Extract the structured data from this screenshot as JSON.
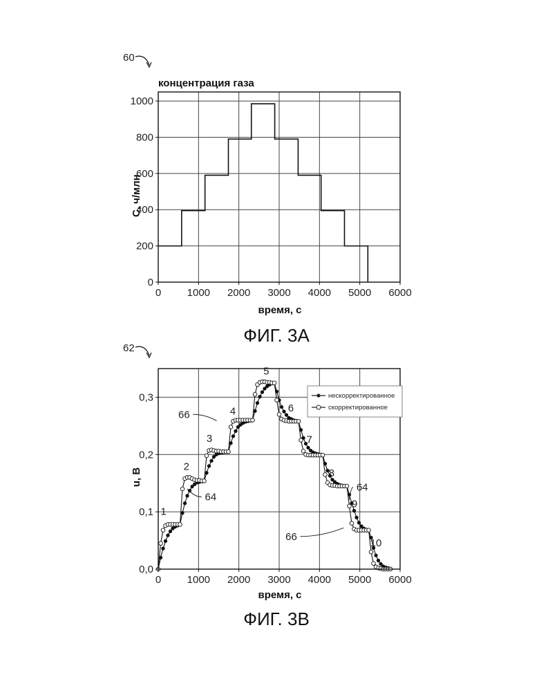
{
  "figure_a": {
    "ref_number": "60",
    "caption": "ФИГ. 3А"
  },
  "figure_b": {
    "ref_number": "62",
    "caption": "ФИГ. 3В",
    "annotations": [
      {
        "text": "1",
        "x": 130,
        "y": 0.095
      },
      {
        "text": "2",
        "x": 700,
        "y": 0.173
      },
      {
        "text": "3",
        "x": 1270,
        "y": 0.222
      },
      {
        "text": "4",
        "x": 1850,
        "y": 0.27
      },
      {
        "text": "5",
        "x": 2680,
        "y": 0.34
      },
      {
        "text": "6",
        "x": 3290,
        "y": 0.275
      },
      {
        "text": "7",
        "x": 3750,
        "y": 0.22
      },
      {
        "text": "8",
        "x": 4300,
        "y": 0.162
      },
      {
        "text": "9",
        "x": 4870,
        "y": 0.108
      },
      {
        "text": "10",
        "x": 5400,
        "y": 0.04
      }
    ],
    "callouts": [
      {
        "text": "66",
        "label_x": 640,
        "label_y": 0.27,
        "target_x": 1450,
        "target_y": 0.259
      },
      {
        "text": "64",
        "label_x": 1300,
        "label_y": 0.126,
        "target_x": 720,
        "target_y": 0.14
      },
      {
        "text": "64",
        "label_x": 5060,
        "label_y": 0.143,
        "target_x": 4730,
        "target_y": 0.12
      },
      {
        "text": "66",
        "label_x": 3300,
        "label_y": 0.057,
        "target_x": 4600,
        "target_y": 0.072
      }
    ]
  },
  "chart_data": [
    {
      "type": "line",
      "title": "концентрация газа",
      "xlabel": "время, с",
      "ylabel": "C, ч/млн",
      "xlim": [
        0,
        6000
      ],
      "ylim": [
        0,
        1050
      ],
      "xticks": [
        0,
        1000,
        2000,
        3000,
        4000,
        5000,
        6000
      ],
      "xtick_labels": [
        "0",
        "1000",
        "2000",
        "3000",
        "4000",
        "5000",
        "6000"
      ],
      "yticks": [
        0,
        200,
        400,
        600,
        800,
        1000
      ],
      "ytick_labels": [
        "0",
        "200",
        "400",
        "600",
        "800",
        "1000"
      ],
      "grid": true,
      "series": [
        {
          "x": [
            0,
            580,
            580,
            1160,
            1160,
            1740,
            1740,
            2310,
            2310,
            2890,
            2890,
            3470,
            3470,
            4040,
            4040,
            4620,
            4620,
            5200,
            5200
          ],
          "y": [
            200,
            200,
            395,
            395,
            590,
            590,
            790,
            790,
            985,
            985,
            790,
            790,
            590,
            590,
            395,
            395,
            200,
            200,
            0
          ]
        }
      ]
    },
    {
      "type": "line",
      "title": "",
      "xlabel": "время, с",
      "ylabel": "u, B",
      "xlim": [
        0,
        6000
      ],
      "ylim": [
        0,
        0.35
      ],
      "xticks": [
        0,
        1000,
        2000,
        3000,
        4000,
        5000,
        6000
      ],
      "xtick_labels": [
        "0",
        "1000",
        "2000",
        "3000",
        "4000",
        "5000",
        "6000"
      ],
      "yticks": [
        0,
        0.1,
        0.2,
        0.3
      ],
      "ytick_labels": [
        "0,0",
        "0,1",
        "0,2",
        "0,3"
      ],
      "grid": true,
      "legend_position": "top-right",
      "series": [
        {
          "name": "нескорректированное",
          "marker": "filled-circle",
          "x": [
            0,
            60,
            120,
            180,
            240,
            300,
            360,
            420,
            480,
            540,
            600,
            660,
            720,
            780,
            840,
            900,
            960,
            1020,
            1080,
            1140,
            1200,
            1260,
            1320,
            1380,
            1440,
            1500,
            1560,
            1620,
            1680,
            1740,
            1800,
            1860,
            1920,
            1980,
            2040,
            2100,
            2160,
            2220,
            2280,
            2340,
            2400,
            2460,
            2520,
            2580,
            2640,
            2700,
            2760,
            2820,
            2880,
            2940,
            3000,
            3060,
            3120,
            3180,
            3240,
            3300,
            3360,
            3420,
            3480,
            3540,
            3600,
            3660,
            3720,
            3780,
            3840,
            3900,
            3960,
            4020,
            4080,
            4140,
            4200,
            4260,
            4320,
            4380,
            4440,
            4500,
            4560,
            4620,
            4680,
            4740,
            4800,
            4860,
            4920,
            4980,
            5040,
            5100,
            5160,
            5220,
            5280,
            5340,
            5400,
            5460,
            5520,
            5580,
            5640,
            5700,
            5760
          ],
          "y": [
            0.0,
            0.02,
            0.036,
            0.049,
            0.059,
            0.066,
            0.071,
            0.074,
            0.076,
            0.078,
            0.098,
            0.115,
            0.128,
            0.137,
            0.144,
            0.148,
            0.151,
            0.152,
            0.153,
            0.154,
            0.168,
            0.18,
            0.189,
            0.196,
            0.2,
            0.202,
            0.203,
            0.204,
            0.205,
            0.205,
            0.22,
            0.232,
            0.241,
            0.248,
            0.252,
            0.255,
            0.257,
            0.258,
            0.259,
            0.26,
            0.276,
            0.29,
            0.301,
            0.309,
            0.315,
            0.319,
            0.322,
            0.324,
            0.325,
            0.31,
            0.295,
            0.283,
            0.275,
            0.269,
            0.264,
            0.262,
            0.26,
            0.259,
            0.258,
            0.243,
            0.229,
            0.219,
            0.212,
            0.207,
            0.204,
            0.202,
            0.201,
            0.2,
            0.199,
            0.184,
            0.172,
            0.163,
            0.156,
            0.152,
            0.149,
            0.147,
            0.146,
            0.145,
            0.145,
            0.13,
            0.115,
            0.102,
            0.09,
            0.081,
            0.075,
            0.071,
            0.069,
            0.068,
            0.055,
            0.037,
            0.024,
            0.015,
            0.009,
            0.005,
            0.003,
            0.002,
            0.001
          ]
        },
        {
          "name": "скорректированное",
          "marker": "open-circle",
          "x": [
            0,
            60,
            120,
            180,
            240,
            300,
            360,
            420,
            480,
            540,
            600,
            660,
            720,
            780,
            840,
            900,
            960,
            1020,
            1080,
            1140,
            1200,
            1260,
            1320,
            1380,
            1440,
            1500,
            1560,
            1620,
            1680,
            1740,
            1800,
            1860,
            1920,
            1980,
            2040,
            2100,
            2160,
            2220,
            2280,
            2340,
            2400,
            2460,
            2520,
            2580,
            2640,
            2700,
            2760,
            2820,
            2880,
            2940,
            3000,
            3060,
            3120,
            3180,
            3240,
            3300,
            3360,
            3420,
            3480,
            3540,
            3600,
            3660,
            3720,
            3780,
            3840,
            3900,
            3960,
            4020,
            4080,
            4140,
            4200,
            4260,
            4320,
            4380,
            4440,
            4500,
            4560,
            4620,
            4680,
            4740,
            4800,
            4860,
            4920,
            4980,
            5040,
            5100,
            5160,
            5220,
            5280,
            5340,
            5400,
            5460,
            5520,
            5580,
            5640,
            5700,
            5760
          ],
          "y": [
            0.0,
            0.045,
            0.068,
            0.076,
            0.078,
            0.078,
            0.078,
            0.078,
            0.078,
            0.078,
            0.14,
            0.158,
            0.16,
            0.16,
            0.158,
            0.156,
            0.155,
            0.155,
            0.154,
            0.154,
            0.198,
            0.207,
            0.208,
            0.207,
            0.206,
            0.206,
            0.205,
            0.205,
            0.205,
            0.205,
            0.248,
            0.258,
            0.26,
            0.26,
            0.26,
            0.26,
            0.26,
            0.26,
            0.26,
            0.26,
            0.305,
            0.322,
            0.326,
            0.327,
            0.327,
            0.326,
            0.326,
            0.325,
            0.325,
            0.295,
            0.27,
            0.262,
            0.26,
            0.259,
            0.258,
            0.258,
            0.258,
            0.258,
            0.258,
            0.225,
            0.206,
            0.2,
            0.199,
            0.199,
            0.199,
            0.199,
            0.199,
            0.199,
            0.199,
            0.165,
            0.151,
            0.147,
            0.146,
            0.146,
            0.145,
            0.145,
            0.145,
            0.145,
            0.145,
            0.11,
            0.08,
            0.07,
            0.068,
            0.068,
            0.068,
            0.068,
            0.068,
            0.068,
            0.03,
            0.01,
            0.004,
            0.002,
            0.001,
            0.0,
            0.0,
            0.0,
            0.0
          ]
        }
      ]
    }
  ]
}
